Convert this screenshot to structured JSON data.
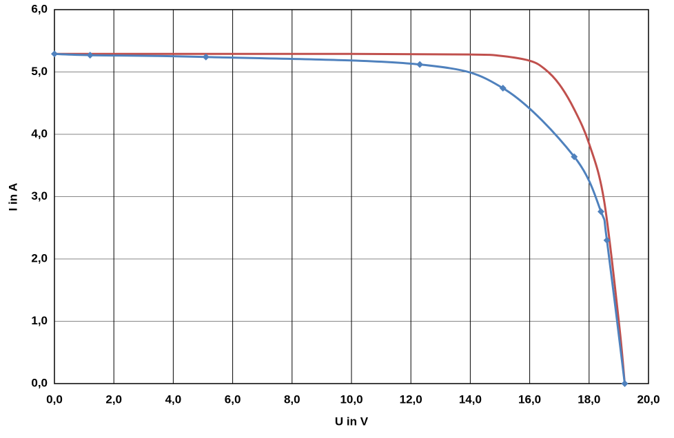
{
  "chart_data": {
    "type": "line",
    "x_label": "U in V",
    "y_label": "I in A",
    "xlim": [
      0,
      20
    ],
    "ylim": [
      0,
      6
    ],
    "xticks": [
      {
        "value": 0,
        "label": "0,0"
      },
      {
        "value": 2,
        "label": "2,0"
      },
      {
        "value": 4,
        "label": "4,0"
      },
      {
        "value": 6,
        "label": "6,0"
      },
      {
        "value": 8,
        "label": "8,0"
      },
      {
        "value": 10,
        "label": "10,0"
      },
      {
        "value": 12,
        "label": "12,0"
      },
      {
        "value": 14,
        "label": "14,0"
      },
      {
        "value": 16,
        "label": "16,0"
      },
      {
        "value": 18,
        "label": "18,0"
      },
      {
        "value": 20,
        "label": "20,0"
      }
    ],
    "yticks": [
      {
        "value": 0,
        "label": "0,0"
      },
      {
        "value": 1,
        "label": "1,0"
      },
      {
        "value": 2,
        "label": "2,0"
      },
      {
        "value": 3,
        "label": "3,0"
      },
      {
        "value": 4,
        "label": "4,0"
      },
      {
        "value": 5,
        "label": "5,0"
      },
      {
        "value": 6,
        "label": "6,0"
      }
    ],
    "grid": true,
    "smooth": true,
    "series": [
      {
        "color": "#c0504d",
        "marker": "none",
        "x": [
          0,
          10,
          14,
          15,
          16,
          16.5,
          17,
          17.5,
          18,
          18.5,
          19,
          19.2
        ],
        "values": [
          5.29,
          5.29,
          5.28,
          5.26,
          5.18,
          5.05,
          4.8,
          4.4,
          3.85,
          2.95,
          1.0,
          0
        ]
      },
      {
        "color": "#4f81bd",
        "marker": "diamond",
        "x": [
          0,
          1.2,
          5.1,
          12.3,
          15.1,
          17.5,
          18.4,
          18.6,
          19.2
        ],
        "values": [
          5.29,
          5.27,
          5.24,
          5.12,
          4.74,
          3.64,
          2.76,
          2.3,
          0
        ]
      }
    ]
  }
}
